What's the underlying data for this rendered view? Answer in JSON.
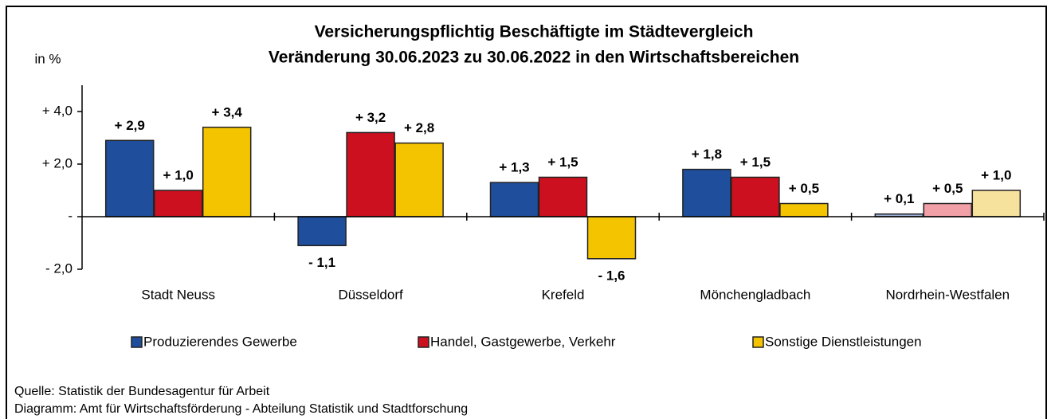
{
  "chart_data": {
    "type": "bar",
    "title": "Versicherungspflichtig Beschäftigte im Städtevergleich",
    "subtitle": "Veränderung 30.06.2023 zu 30.06.2022 in den Wirtschaftsbereichen",
    "y_label": "in %",
    "categories": [
      "Stadt Neuss",
      "Düsseldorf",
      "Krefeld",
      "Mönchengladbach",
      "Nordrhein-Westfalen"
    ],
    "series": [
      {
        "name": "Produzierendes Gewerbe",
        "color": "#1f4e9c",
        "colors": [
          "#1f4e9c",
          "#1f4e9c",
          "#1f4e9c",
          "#1f4e9c",
          "#9fb1da"
        ],
        "values": [
          2.9,
          -1.1,
          1.3,
          1.8,
          0.1
        ],
        "value_labels": [
          "+ 2,9",
          "- 1,1",
          "+ 1,3",
          "+ 1,8",
          "+ 0,1"
        ]
      },
      {
        "name": "Handel, Gastgewerbe, Verkehr",
        "color": "#cc1020",
        "colors": [
          "#cc1020",
          "#cc1020",
          "#cc1020",
          "#cc1020",
          "#f2a0a8"
        ],
        "values": [
          1.0,
          3.2,
          1.5,
          1.5,
          0.5
        ],
        "value_labels": [
          "+ 1,0",
          "+ 3,2",
          "+ 1,5",
          "+ 1,5",
          "+ 0,5"
        ]
      },
      {
        "name": "Sonstige Dienstleistungen",
        "color": "#f5c400",
        "colors": [
          "#f5c400",
          "#f5c400",
          "#f5c400",
          "#f5c400",
          "#f6e29c"
        ],
        "values": [
          3.4,
          2.8,
          -1.6,
          0.5,
          1.0
        ],
        "value_labels": [
          "+ 3,4",
          "+ 2,8",
          "- 1,6",
          "+ 0,5",
          "+ 1,0"
        ]
      }
    ],
    "ylim": [
      -2,
      5
    ],
    "yticks": [
      {
        "value": -2,
        "label": "- 2,0"
      },
      {
        "value": 0,
        "label": "-"
      },
      {
        "value": 2,
        "label": "+ 2,0"
      },
      {
        "value": 4,
        "label": "+ 4,0"
      }
    ],
    "grid": false,
    "legend": "bottom",
    "source": "Quelle: Statistik der Bundesagentur für Arbeit",
    "credit": "Diagramm: Amt für Wirtschaftsförderung - Abteilung Statistik und Stadtforschung"
  }
}
